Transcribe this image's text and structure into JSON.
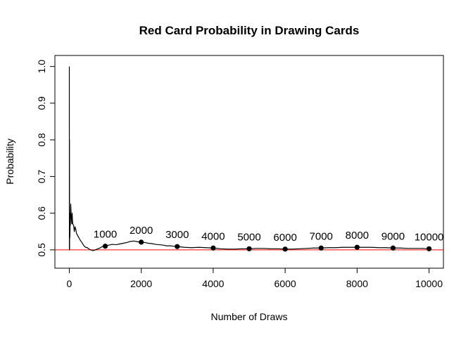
{
  "chart_data": {
    "type": "line",
    "title": "Red Card Probability in Drawing Cards",
    "xlabel": "Number of Draws",
    "ylabel": "Probability",
    "xlim": [
      -400,
      10400
    ],
    "ylim": [
      0.45,
      1.03
    ],
    "xticks": [
      0,
      2000,
      4000,
      6000,
      8000,
      10000
    ],
    "xtick_labels": [
      "0",
      "2000",
      "4000",
      "6000",
      "8000",
      "10000"
    ],
    "yticks": [
      0.5,
      0.6,
      0.7,
      0.8,
      0.9,
      1.0
    ],
    "ytick_labels": [
      "0.5",
      "0.6",
      "0.7",
      "0.8",
      "0.9",
      "1.0"
    ],
    "reference_line": {
      "y": 0.5,
      "color": "#ff0000"
    },
    "line_color": "#000000",
    "series": [
      {
        "x": [
          1,
          2,
          3,
          5,
          8,
          10,
          15,
          20,
          25,
          30,
          40,
          50,
          60,
          70,
          80,
          90,
          100,
          120,
          140,
          160,
          180,
          200,
          250,
          300,
          350,
          400,
          450,
          500,
          550,
          600,
          650,
          700,
          750,
          800,
          850,
          900,
          950,
          1000,
          1100,
          1200,
          1300,
          1400,
          1500,
          1600,
          1700,
          1800,
          1900,
          2000,
          2100,
          2200,
          2300,
          2400,
          2500,
          2600,
          2700,
          2800,
          2900,
          3000,
          3200,
          3400,
          3600,
          3800,
          4000,
          4200,
          4400,
          4600,
          4800,
          5000,
          5200,
          5400,
          5600,
          5800,
          6000,
          6200,
          6400,
          6600,
          6800,
          7000,
          7200,
          7400,
          7600,
          7800,
          8000,
          8200,
          8400,
          8600,
          8800,
          9000,
          9200,
          9400,
          9600,
          9800,
          10000
        ],
        "y": [
          1.0,
          0.5,
          0.667,
          0.8,
          0.5,
          0.6,
          0.533,
          0.55,
          0.6,
          0.567,
          0.625,
          0.6,
          0.583,
          0.571,
          0.6,
          0.578,
          0.57,
          0.567,
          0.55,
          0.563,
          0.556,
          0.545,
          0.536,
          0.527,
          0.52,
          0.512,
          0.507,
          0.506,
          0.502,
          0.5,
          0.498,
          0.499,
          0.501,
          0.503,
          0.505,
          0.508,
          0.51,
          0.51,
          0.513,
          0.515,
          0.514,
          0.516,
          0.518,
          0.52,
          0.523,
          0.524,
          0.522,
          0.521,
          0.52,
          0.518,
          0.517,
          0.515,
          0.514,
          0.513,
          0.511,
          0.511,
          0.51,
          0.509,
          0.507,
          0.506,
          0.507,
          0.506,
          0.505,
          0.503,
          0.502,
          0.502,
          0.503,
          0.503,
          0.504,
          0.504,
          0.503,
          0.503,
          0.502,
          0.502,
          0.503,
          0.504,
          0.505,
          0.505,
          0.506,
          0.506,
          0.507,
          0.507,
          0.507,
          0.507,
          0.507,
          0.506,
          0.506,
          0.505,
          0.505,
          0.504,
          0.504,
          0.504,
          0.503
        ]
      }
    ],
    "points": [
      {
        "x": 1000,
        "y": 0.51,
        "label": "1000"
      },
      {
        "x": 2000,
        "y": 0.521,
        "label": "2000"
      },
      {
        "x": 3000,
        "y": 0.509,
        "label": "3000"
      },
      {
        "x": 4000,
        "y": 0.505,
        "label": "4000"
      },
      {
        "x": 5000,
        "y": 0.503,
        "label": "5000"
      },
      {
        "x": 6000,
        "y": 0.502,
        "label": "6000"
      },
      {
        "x": 7000,
        "y": 0.505,
        "label": "7000"
      },
      {
        "x": 8000,
        "y": 0.507,
        "label": "8000"
      },
      {
        "x": 9000,
        "y": 0.505,
        "label": "9000"
      },
      {
        "x": 10000,
        "y": 0.503,
        "label": "10000"
      }
    ]
  }
}
